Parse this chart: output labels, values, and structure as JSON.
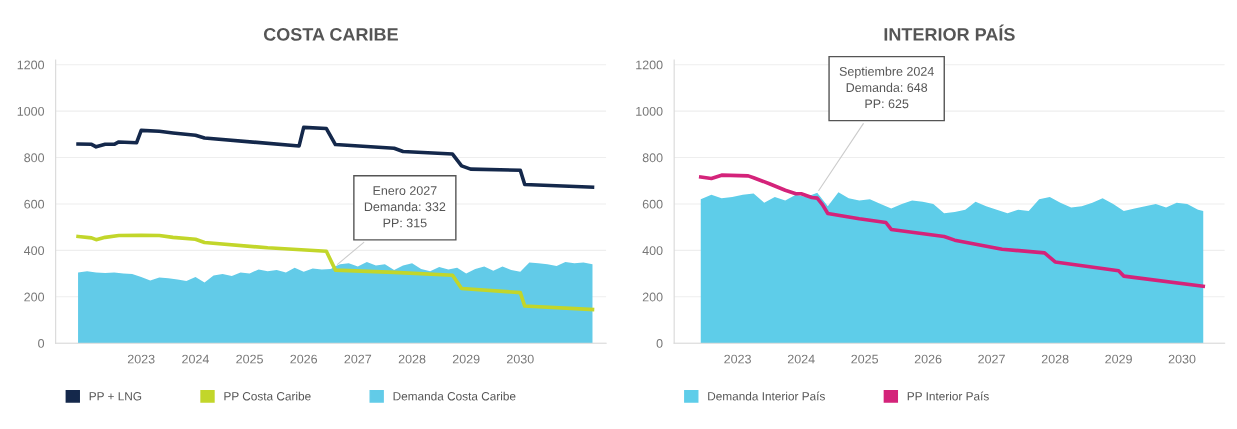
{
  "chart_data": [
    {
      "type": "line",
      "title": "COSTA CARIBE",
      "xlim": [
        "2021-11-01",
        "2032-01-01"
      ],
      "ylim": [
        0,
        1220
      ],
      "yticks": [
        0,
        200,
        400,
        600,
        800,
        1000,
        1200
      ],
      "xticks": [
        {
          "value": "2023-06-01",
          "label": "2023"
        },
        {
          "value": "2024-06-01",
          "label": "2024"
        },
        {
          "value": "2025-06-01",
          "label": "2025"
        },
        {
          "value": "2026-06-01",
          "label": "2026"
        },
        {
          "value": "2027-06-01",
          "label": "2027"
        },
        {
          "value": "2028-06-01",
          "label": "2028"
        },
        {
          "value": "2029-06-01",
          "label": "2029"
        },
        {
          "value": "2030-06-01",
          "label": "2030"
        }
      ],
      "grid": "y",
      "legend": "bottom",
      "marker": "none",
      "line_style": "solid",
      "annotations": [
        {
          "text": "Enero 2027\nDemanda: 332\nPP: 315",
          "x": "2027-01",
          "y": 332
        }
      ],
      "series": [
        {
          "name": "PP + LNG",
          "color": "#14284b",
          "x": [
            "2022-04",
            "2022-07",
            "2022-08",
            "2022-10",
            "2022-12",
            "2023-01",
            "2023-05",
            "2023-06",
            "2023-10",
            "2024-01",
            "2024-06",
            "2024-08",
            "2026-05",
            "2026-06",
            "2026-11",
            "2027-01",
            "2028-02",
            "2028-04",
            "2029-03",
            "2029-05",
            "2029-07",
            "2030-06",
            "2030-07",
            "2031-10"
          ],
          "values": [
            858,
            857,
            846,
            857,
            857,
            867,
            864,
            917,
            913,
            906,
            896,
            884,
            850,
            930,
            925,
            856,
            840,
            826,
            815,
            764,
            750,
            745,
            684,
            672
          ]
        },
        {
          "name": "PP Costa Caribe",
          "color": "#c2d62a",
          "x": [
            "2022-04",
            "2022-07",
            "2022-08",
            "2022-10",
            "2023-01",
            "2023-06",
            "2023-10",
            "2024-01",
            "2024-06",
            "2024-08",
            "2025-10",
            "2026-11",
            "2027-01",
            "2028-02",
            "2029-03",
            "2029-05",
            "2030-06",
            "2030-07",
            "2031-10"
          ],
          "values": [
            460,
            454,
            446,
            456,
            464,
            465,
            464,
            456,
            448,
            434,
            411,
            396,
            315,
            305,
            293,
            236,
            218,
            160,
            145
          ]
        },
        {
          "name": "Demanda Costa Caribe",
          "color": "#62cbe8",
          "type": "area",
          "x": [
            "2022-04",
            "2022-06",
            "2022-08",
            "2022-10",
            "2022-12",
            "2023-02",
            "2023-04",
            "2023-06",
            "2023-08",
            "2023-10",
            "2023-12",
            "2024-02",
            "2024-04",
            "2024-06",
            "2024-08",
            "2024-10",
            "2024-12",
            "2025-02",
            "2025-04",
            "2025-06",
            "2025-08",
            "2025-10",
            "2025-12",
            "2026-02",
            "2026-04",
            "2026-06",
            "2026-08",
            "2026-10",
            "2026-12",
            "2027-01",
            "2027-02",
            "2027-04",
            "2027-06",
            "2027-08",
            "2027-10",
            "2027-12",
            "2028-02",
            "2028-04",
            "2028-06",
            "2028-08",
            "2028-10",
            "2028-12",
            "2029-02",
            "2029-04",
            "2029-06",
            "2029-08",
            "2029-10",
            "2029-12",
            "2030-02",
            "2030-04",
            "2030-06",
            "2030-08",
            "2030-10",
            "2030-12",
            "2031-02",
            "2031-04",
            "2031-06",
            "2031-08",
            "2031-10"
          ],
          "values": [
            305,
            310,
            305,
            303,
            305,
            300,
            298,
            285,
            270,
            283,
            280,
            275,
            268,
            285,
            262,
            292,
            298,
            290,
            305,
            300,
            318,
            310,
            315,
            305,
            325,
            308,
            322,
            318,
            320,
            332,
            340,
            345,
            330,
            350,
            335,
            340,
            315,
            335,
            345,
            320,
            310,
            328,
            318,
            325,
            300,
            320,
            330,
            312,
            330,
            315,
            308,
            348,
            345,
            340,
            333,
            350,
            345,
            348,
            340
          ]
        }
      ]
    },
    {
      "type": "line",
      "title": "INTERIOR PAÍS",
      "xlim": [
        "2022-06-01",
        "2031-02-01"
      ],
      "ylim": [
        0,
        1220
      ],
      "yticks": [
        0,
        200,
        400,
        600,
        800,
        1000,
        1200
      ],
      "xticks": [
        {
          "value": "2023-06-01",
          "label": "2023"
        },
        {
          "value": "2024-06-01",
          "label": "2024"
        },
        {
          "value": "2025-06-01",
          "label": "2025"
        },
        {
          "value": "2026-06-01",
          "label": "2026"
        },
        {
          "value": "2027-06-01",
          "label": "2027"
        },
        {
          "value": "2028-06-01",
          "label": "2028"
        },
        {
          "value": "2029-06-01",
          "label": "2029"
        },
        {
          "value": "2030-06-01",
          "label": "2030"
        }
      ],
      "grid": "y",
      "legend": "bottom",
      "marker": "none",
      "line_style": "solid",
      "annotations": [
        {
          "text": "Septiembre 2024\nDemanda: 648\nPP: 625",
          "x": "2024-09",
          "y": 648
        }
      ],
      "series": [
        {
          "name": "Demanda Interior País",
          "color": "#5ecde9",
          "type": "area",
          "x": [
            "2022-11",
            "2023-01",
            "2023-03",
            "2023-05",
            "2023-07",
            "2023-09",
            "2023-11",
            "2024-01",
            "2024-03",
            "2024-05",
            "2024-07",
            "2024-09",
            "2024-11",
            "2025-01",
            "2025-03",
            "2025-05",
            "2025-07",
            "2025-09",
            "2025-11",
            "2026-01",
            "2026-03",
            "2026-05",
            "2026-07",
            "2026-09",
            "2026-11",
            "2027-01",
            "2027-03",
            "2027-05",
            "2027-07",
            "2027-09",
            "2027-11",
            "2028-01",
            "2028-03",
            "2028-05",
            "2028-07",
            "2028-09",
            "2028-11",
            "2029-01",
            "2029-03",
            "2029-05",
            "2029-07",
            "2029-09",
            "2029-11",
            "2030-01",
            "2030-03",
            "2030-05",
            "2030-07",
            "2030-09",
            "2030-10"
          ],
          "values": [
            620,
            640,
            625,
            630,
            640,
            645,
            605,
            630,
            615,
            640,
            630,
            648,
            590,
            650,
            625,
            615,
            620,
            600,
            580,
            600,
            615,
            610,
            600,
            560,
            565,
            575,
            610,
            590,
            575,
            560,
            575,
            570,
            620,
            630,
            605,
            585,
            590,
            605,
            625,
            600,
            570,
            580,
            590,
            600,
            585,
            605,
            600,
            575,
            570
          ]
        },
        {
          "name": "PP Interior País",
          "color": "#d4237a",
          "x": [
            "2022-11",
            "2023-01",
            "2023-03",
            "2023-08",
            "2023-09",
            "2023-12",
            "2024-03",
            "2024-05",
            "2024-06",
            "2024-08",
            "2024-09",
            "2024-10",
            "2024-11",
            "2025-05",
            "2025-10",
            "2025-11",
            "2026-09",
            "2026-11",
            "2027-08",
            "2028-04",
            "2028-06",
            "2029-06",
            "2029-07",
            "2030-10"
          ],
          "values": [
            716,
            710,
            724,
            721,
            713,
            687,
            659,
            644,
            644,
            628,
            625,
            597,
            559,
            536,
            520,
            490,
            460,
            444,
            405,
            389,
            350,
            312,
            289,
            245
          ]
        }
      ]
    }
  ]
}
